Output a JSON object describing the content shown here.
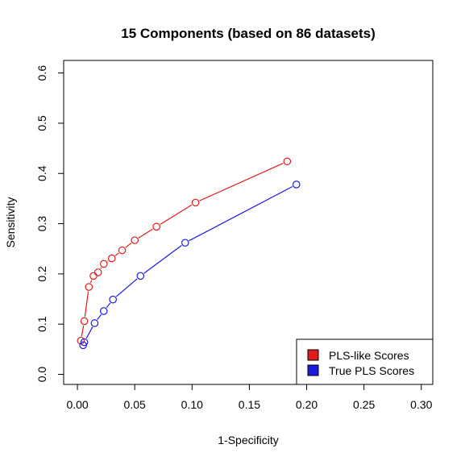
{
  "chart_data": {
    "type": "line",
    "title": "15 Components (based on 86 datasets)",
    "xlabel": "1-Specificity",
    "ylabel": "Sensitivity",
    "xlim": [
      -0.012,
      0.31
    ],
    "ylim": [
      -0.02,
      0.625
    ],
    "xticks": [
      0.0,
      0.05,
      0.1,
      0.15,
      0.2,
      0.25,
      0.3
    ],
    "xtick_labels": [
      "0.00",
      "0.05",
      "0.10",
      "0.15",
      "0.20",
      "0.25",
      "0.30"
    ],
    "yticks": [
      0.0,
      0.1,
      0.2,
      0.3,
      0.4,
      0.5,
      0.6
    ],
    "ytick_labels": [
      "0.0",
      "0.1",
      "0.2",
      "0.3",
      "0.4",
      "0.5",
      "0.6"
    ],
    "grid": false,
    "legend_position": "bottom-right",
    "series": [
      {
        "name": "PLS-like Scores",
        "color": "#e31a1c",
        "points": [
          [
            0.003,
            0.067
          ],
          [
            0.006,
            0.106
          ],
          [
            0.01,
            0.174
          ],
          [
            0.014,
            0.196
          ],
          [
            0.018,
            0.203
          ],
          [
            0.023,
            0.22
          ],
          [
            0.03,
            0.231
          ],
          [
            0.039,
            0.247
          ],
          [
            0.05,
            0.267
          ],
          [
            0.069,
            0.294
          ],
          [
            0.103,
            0.342
          ],
          [
            0.183,
            0.424
          ]
        ]
      },
      {
        "name": "True PLS Scores",
        "color": "#1a1ae3",
        "points": [
          [
            0.005,
            0.058
          ],
          [
            0.006,
            0.064
          ],
          [
            0.015,
            0.102
          ],
          [
            0.023,
            0.126
          ],
          [
            0.031,
            0.149
          ],
          [
            0.055,
            0.196
          ],
          [
            0.094,
            0.262
          ],
          [
            0.191,
            0.378
          ]
        ]
      }
    ]
  }
}
